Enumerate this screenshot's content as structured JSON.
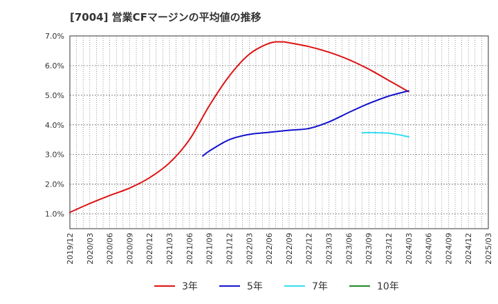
{
  "chart_data": {
    "type": "line",
    "title": "[7004]  営業CFマージンの平均値の推移",
    "xlabel": "",
    "ylabel": "",
    "ylim": [
      0.5,
      7.0
    ],
    "y_ticks": [
      "1.0%",
      "2.0%",
      "3.0%",
      "4.0%",
      "5.0%",
      "6.0%",
      "7.0%"
    ],
    "y_tick_values": [
      1.0,
      2.0,
      3.0,
      4.0,
      5.0,
      6.0,
      7.0
    ],
    "x_range": [
      "2019/12",
      "2025/03"
    ],
    "x_ticks": [
      "2019/12",
      "2020/03",
      "2020/06",
      "2020/09",
      "2020/12",
      "2021/03",
      "2021/06",
      "2021/09",
      "2021/12",
      "2022/03",
      "2022/06",
      "2022/09",
      "2022/12",
      "2023/03",
      "2023/06",
      "2023/09",
      "2023/12",
      "2024/03",
      "2024/06",
      "2024/09",
      "2024/12",
      "2025/03"
    ],
    "grid": true,
    "legend_position": "bottom",
    "series": [
      {
        "name": "3年",
        "color": "#dd1111",
        "points": [
          [
            "2019/12",
            1.05
          ],
          [
            "2020/03",
            1.35
          ],
          [
            "2020/06",
            1.62
          ],
          [
            "2020/09",
            1.87
          ],
          [
            "2020/12",
            2.22
          ],
          [
            "2021/03",
            2.72
          ],
          [
            "2021/06",
            3.5
          ],
          [
            "2021/09",
            4.65
          ],
          [
            "2021/12",
            5.65
          ],
          [
            "2022/03",
            6.38
          ],
          [
            "2022/06",
            6.75
          ],
          [
            "2022/08",
            6.8
          ],
          [
            "2022/09",
            6.77
          ],
          [
            "2022/12",
            6.64
          ],
          [
            "2023/03",
            6.45
          ],
          [
            "2023/06",
            6.2
          ],
          [
            "2023/09",
            5.88
          ],
          [
            "2023/12",
            5.5
          ],
          [
            "2024/03",
            5.12
          ]
        ]
      },
      {
        "name": "5年",
        "color": "#1111cc",
        "points": [
          [
            "2021/08",
            2.95
          ],
          [
            "2021/09",
            3.12
          ],
          [
            "2021/12",
            3.5
          ],
          [
            "2022/03",
            3.68
          ],
          [
            "2022/06",
            3.75
          ],
          [
            "2022/09",
            3.82
          ],
          [
            "2022/12",
            3.88
          ],
          [
            "2023/03",
            4.1
          ],
          [
            "2023/06",
            4.42
          ],
          [
            "2023/09",
            4.72
          ],
          [
            "2023/12",
            4.97
          ],
          [
            "2024/03",
            5.15
          ]
        ]
      },
      {
        "name": "7年",
        "color": "#33ddee",
        "points": [
          [
            "2023/08",
            3.73
          ],
          [
            "2023/09",
            3.74
          ],
          [
            "2023/12",
            3.72
          ],
          [
            "2024/03",
            3.6
          ]
        ]
      },
      {
        "name": "10年",
        "color": "#228822",
        "points": []
      }
    ]
  }
}
